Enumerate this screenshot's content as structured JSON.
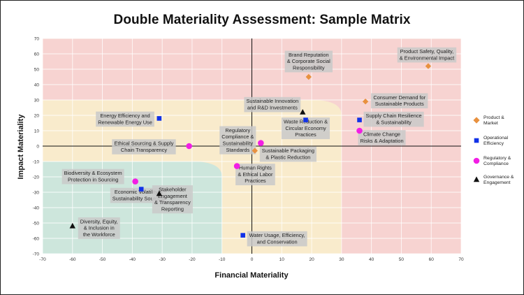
{
  "chart_data": {
    "type": "scatter",
    "title": "Double Materiality Assessment: Sample Matrix",
    "xlabel": "Financial Materiality",
    "ylabel": "Impact Materiality",
    "xlim": [
      -70,
      70
    ],
    "ylim": [
      -70,
      70
    ],
    "xticks": [
      -70,
      -60,
      -50,
      -40,
      -30,
      -20,
      -10,
      0,
      10,
      20,
      30,
      40,
      50,
      60,
      70
    ],
    "yticks": [
      -70,
      -60,
      -50,
      -40,
      -30,
      -20,
      -10,
      0,
      10,
      20,
      30,
      40,
      50,
      60,
      70
    ],
    "grid": true,
    "legend_position": "right",
    "zone_colors": {
      "high": "#f7d3d1",
      "medium": "#f9ebcc",
      "low": "#cde6dc"
    },
    "series": [
      {
        "name": "Product & Market",
        "marker": "diamond",
        "color": "#e8913f",
        "points": [
          {
            "x": 59,
            "y": 52,
            "label": "Product Safety, Quality,\n& Environmental Impact"
          },
          {
            "x": 19,
            "y": 45,
            "label": "Brand Reputation\n& Corporate Social\nResponsibility"
          },
          {
            "x": 38,
            "y": 29,
            "label": "Consumer Demand for\nSustainable Products"
          },
          {
            "x": 1,
            "y": -3,
            "label": "Sustainable Packaging\n& Plastic Reduction"
          }
        ]
      },
      {
        "name": "Operational Efficiency",
        "marker": "square",
        "color": "#1132e8",
        "points": [
          {
            "x": -31,
            "y": 18,
            "label": "Energy Efficiency and\nRenewable Energy Use"
          },
          {
            "x": 18,
            "y": 17,
            "label": "Waste Reduction &\nCircular Economy\nPractices"
          },
          {
            "x": 36,
            "y": 17,
            "label": "Supply Chain Resilience\n& Sustainability"
          },
          {
            "x": -37,
            "y": -28,
            "label": "Economic Volatility &\nSustainability Sourcing"
          },
          {
            "x": -3,
            "y": -58,
            "label": "Water Usage, Efficiency,\nand Conservation"
          }
        ]
      },
      {
        "name": "Regulatory & Compliance",
        "marker": "circle",
        "color": "#f21ee4",
        "points": [
          {
            "x": 36,
            "y": 10,
            "label": "Climate Change\nRisks & Adaptation"
          },
          {
            "x": -21,
            "y": 0,
            "label": "Ethical Sourcing & Supply\nChain Transparency"
          },
          {
            "x": 3,
            "y": 2,
            "label": "Regulatory\nCompliance &\nSustainability\nStandards"
          },
          {
            "x": -5,
            "y": -13,
            "label": "Human Rights\n& Ethical Labor\nPractices"
          },
          {
            "x": -39,
            "y": -23,
            "label": "Biodiversity & Ecosystem\nProtection in Sourcing"
          }
        ]
      },
      {
        "name": "Governance & Engagement",
        "marker": "triangle",
        "color": "#111111",
        "points": [
          {
            "x": 17,
            "y": 22,
            "label": "Sustainable Innovation\nand R&D Investments"
          },
          {
            "x": -31,
            "y": -31,
            "label": "Stakeholder\nEngagement\n& Transparency\nReporting"
          },
          {
            "x": -60,
            "y": -52,
            "label": "Diversity, Equity,\n& Inclusion in\nthe Workforce"
          }
        ]
      }
    ]
  }
}
